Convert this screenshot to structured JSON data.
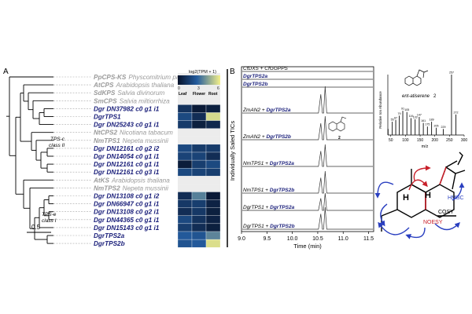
{
  "panel_a": {
    "label": "A",
    "scale_bar": "0.5",
    "clade_tps_c": [
      "TPS-c",
      "class II"
    ],
    "clade_tps_e": [
      "TPS-e",
      "class I"
    ],
    "heatmap_title": "log2(TPM + 1)",
    "heatmap_scale_min": "0",
    "heatmap_scale_mid": "3",
    "heatmap_scale_max": "6",
    "heatmap_columns": [
      "Leaf",
      "Flower",
      "Root"
    ],
    "taxa": [
      {
        "id": "PpCPS-KS",
        "species": "Physcomitrium patens",
        "style": "grey"
      },
      {
        "id": "AtCPS",
        "species": "Arabidopsis thaliana",
        "style": "grey"
      },
      {
        "id": "SdKPS",
        "species": "Salvia divinorum",
        "style": "grey"
      },
      {
        "id": "SmCPS",
        "species": "Salvia miltiorrhiza",
        "style": "grey"
      },
      {
        "id": "Dgr DN37982 c0 g1 i1",
        "species": "",
        "style": "blue"
      },
      {
        "id": "DgrTPS1",
        "species": "",
        "style": "blue"
      },
      {
        "id": "Dgr DN25243 c0 g1 i1",
        "species": "",
        "style": "blue"
      },
      {
        "id": "NtCPS2",
        "species": "Nicotiana tabacum",
        "style": "grey"
      },
      {
        "id": "NmTPS1",
        "species": "Nepeta mussinii",
        "style": "grey"
      },
      {
        "id": "Dgr DN12161 c0 g2 i2",
        "species": "",
        "style": "blue"
      },
      {
        "id": "Dgr DN14054 c0 g1 i1",
        "species": "",
        "style": "blue"
      },
      {
        "id": "Dgr DN12161 c0 g1 i1",
        "species": "",
        "style": "blue"
      },
      {
        "id": "Dgr DN12161 c0 g3 i1",
        "species": "",
        "style": "blue"
      },
      {
        "id": "AtKS",
        "species": "Arabidopsis thaliana",
        "style": "grey"
      },
      {
        "id": "NmTPS2",
        "species": "Nepeta mussinii",
        "style": "grey"
      },
      {
        "id": "Dgr DN13108 c0 g1 i2",
        "species": "",
        "style": "blue"
      },
      {
        "id": "Dgr DN66947 c0 g1 i1",
        "species": "",
        "style": "blue"
      },
      {
        "id": "Dgr DN13108 c0 g2 i1",
        "species": "",
        "style": "blue"
      },
      {
        "id": "Dgr DN44365 c0 g1 i1",
        "species": "",
        "style": "blue"
      },
      {
        "id": "Dgr DN15143 c0 g1 i1",
        "species": "",
        "style": "blue"
      },
      {
        "id": "DgrTPS2a",
        "species": "",
        "style": "blue"
      },
      {
        "id": "DgrTPS2b",
        "species": "",
        "style": "blue"
      }
    ],
    "heatmap_rows": [
      null,
      null,
      null,
      null,
      [
        1.2,
        0.3,
        0.5
      ],
      [
        2.0,
        1.0,
        5.5
      ],
      [
        1.5,
        0.5,
        0.8
      ],
      null,
      null,
      [
        2.0,
        1.5,
        1.5
      ],
      [
        1.8,
        1.8,
        1.0
      ],
      [
        0.4,
        1.6,
        2.0
      ],
      [
        2.0,
        1.8,
        1.6
      ],
      null,
      null,
      [
        1.0,
        3.5,
        0.3
      ],
      [
        1.4,
        1.6,
        0.6
      ],
      [
        1.0,
        1.4,
        0.5
      ],
      [
        2.0,
        1.2,
        0.6
      ],
      [
        1.6,
        1.0,
        0.5
      ],
      [
        2.6,
        2.4,
        3.6
      ],
      [
        2.4,
        2.6,
        5.6
      ]
    ]
  },
  "panel_b": {
    "label": "B",
    "ylabel": "Individually Saled TICs",
    "xlabel": "Time (min)",
    "x_ticks": [
      "9.0",
      "9.5",
      "10.0",
      "10.5",
      "11.0",
      "11.5"
    ],
    "traces": [
      {
        "parts": [
          {
            "t": "CfDXS + CfGGPPS",
            "b": false
          }
        ],
        "peak": 0
      },
      {
        "parts": [
          {
            "t": "DgrTPS2a",
            "b": true
          }
        ],
        "peak": 0
      },
      {
        "parts": [
          {
            "t": "DgrTPS2b",
            "b": true
          }
        ],
        "peak": 0
      },
      {
        "parts": [
          {
            "t": "ZmAN2 + ",
            "b": false
          },
          {
            "t": "DgrTPS2a",
            "b": true
          }
        ],
        "peak": 1
      },
      {
        "parts": [
          {
            "t": "ZmAN2 + ",
            "b": false
          },
          {
            "t": "DgrTPS2b",
            "b": true
          }
        ],
        "peak": 1
      },
      {
        "parts": [
          {
            "t": "NmTPS1 + ",
            "b": false
          },
          {
            "t": "DgrTPS2a",
            "b": true
          }
        ],
        "peak": 1
      },
      {
        "parts": [
          {
            "t": "NmTPS1 + ",
            "b": false
          },
          {
            "t": "DgrTPS2b",
            "b": true
          }
        ],
        "peak": 1
      },
      {
        "parts": [
          {
            "t": "DgrTPS1 + ",
            "b": false
          },
          {
            "t": "DgrTPS2a",
            "b": true
          }
        ],
        "peak": 1
      },
      {
        "parts": [
          {
            "t": "DgrTPS1 + ",
            "b": false
          },
          {
            "t": "DgrTPS2b",
            "b": true
          }
        ],
        "peak": 1
      }
    ],
    "peak_label": "2",
    "compound_name": "ent-atiserene",
    "compound_number": "2",
    "ms": {
      "ylabel": "Relative Ion Abundance",
      "xlabel": "m/z",
      "x_ticks": [
        "50",
        "100",
        "150",
        "200",
        "250",
        "300"
      ],
      "peaks": [
        {
          "mz": 41,
          "rel": 0.1
        },
        {
          "mz": 55,
          "rel": 0.22
        },
        {
          "mz": 67,
          "rel": 0.25
        },
        {
          "mz": 79,
          "rel": 0.32
        },
        {
          "mz": 91,
          "rel": 0.4
        },
        {
          "mz": 105,
          "rel": 0.38
        },
        {
          "mz": 119,
          "rel": 0.28
        },
        {
          "mz": 133,
          "rel": 0.26
        },
        {
          "mz": 147,
          "rel": 0.3
        },
        {
          "mz": 161,
          "rel": 0.2
        },
        {
          "mz": 175,
          "rel": 0.14
        },
        {
          "mz": 189,
          "rel": 0.22
        },
        {
          "mz": 205,
          "rel": 0.12
        },
        {
          "mz": 229,
          "rel": 0.1
        },
        {
          "mz": 257,
          "rel": 1.0
        },
        {
          "mz": 272,
          "rel": 0.34
        }
      ],
      "peak_labels": [
        {
          "mz": 55,
          "t": "55"
        },
        {
          "mz": 67,
          "t": "67"
        },
        {
          "mz": 79,
          "t": "79"
        },
        {
          "mz": 91,
          "t": "91"
        },
        {
          "mz": 105,
          "t": "105"
        },
        {
          "mz": 119,
          "t": "119"
        },
        {
          "mz": 133,
          "t": "133"
        },
        {
          "mz": 147,
          "t": "147"
        },
        {
          "mz": 161,
          "t": "161"
        },
        {
          "mz": 175,
          "t": "175"
        },
        {
          "mz": 189,
          "t": "189"
        },
        {
          "mz": 205,
          "t": "205"
        },
        {
          "mz": 229,
          "t": "229"
        },
        {
          "mz": 257,
          "t": "257"
        },
        {
          "mz": 272,
          "t": "272"
        }
      ]
    },
    "nmr_labels": {
      "h": "H",
      "hmbc": "HMBC",
      "cosy": "COSY",
      "noesy": "NOESY"
    },
    "colors": {
      "hmbc": "#2a3fc0",
      "cosy": "#000000",
      "noesy": "#c8202a",
      "tree": "#000000"
    }
  }
}
